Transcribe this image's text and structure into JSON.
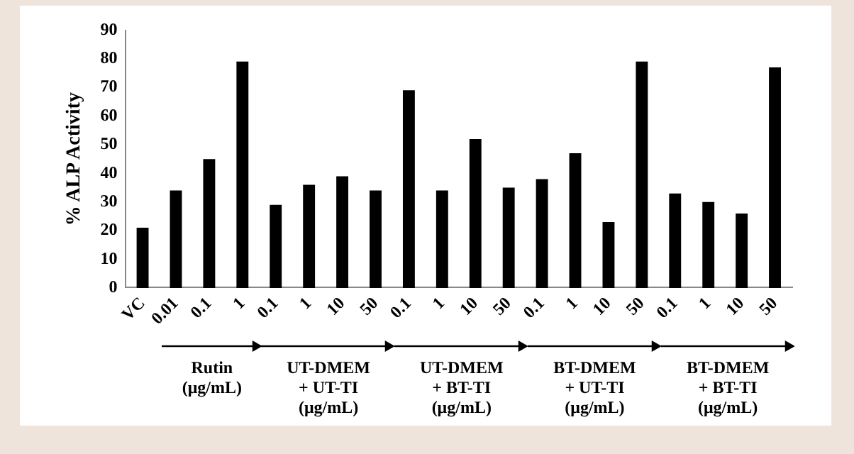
{
  "chart_data": {
    "type": "bar",
    "ylabel": "% ALP Activity",
    "categories": [
      "VC",
      "0.01",
      "0.1",
      "1",
      "0.1",
      "1",
      "10",
      "50",
      "0.1",
      "1",
      "10",
      "50",
      "0.1",
      "1",
      "10",
      "50",
      "0.1",
      "1",
      "10",
      "50"
    ],
    "values": [
      21,
      34,
      45,
      79,
      29,
      36,
      39,
      34,
      69,
      34,
      52,
      35,
      38,
      47,
      23,
      79,
      33,
      30,
      26,
      77
    ],
    "color": "#000000",
    "ylim": [
      0,
      90
    ],
    "yticks": [
      0,
      10,
      20,
      30,
      40,
      50,
      60,
      70,
      80,
      90
    ],
    "grid": false,
    "legend": false,
    "annotations": [
      "Rutin\n(μg/mL)",
      "UT-DMEM\n+ UT-TI\n(μg/mL)",
      "UT-DMEM\n+ BT-TI\n(μg/mL)",
      "BT-DMEM\n+ UT-TI\n(μg/mL)",
      "BT-DMEM\n+ BT-TI\n(μg/mL)"
    ]
  }
}
